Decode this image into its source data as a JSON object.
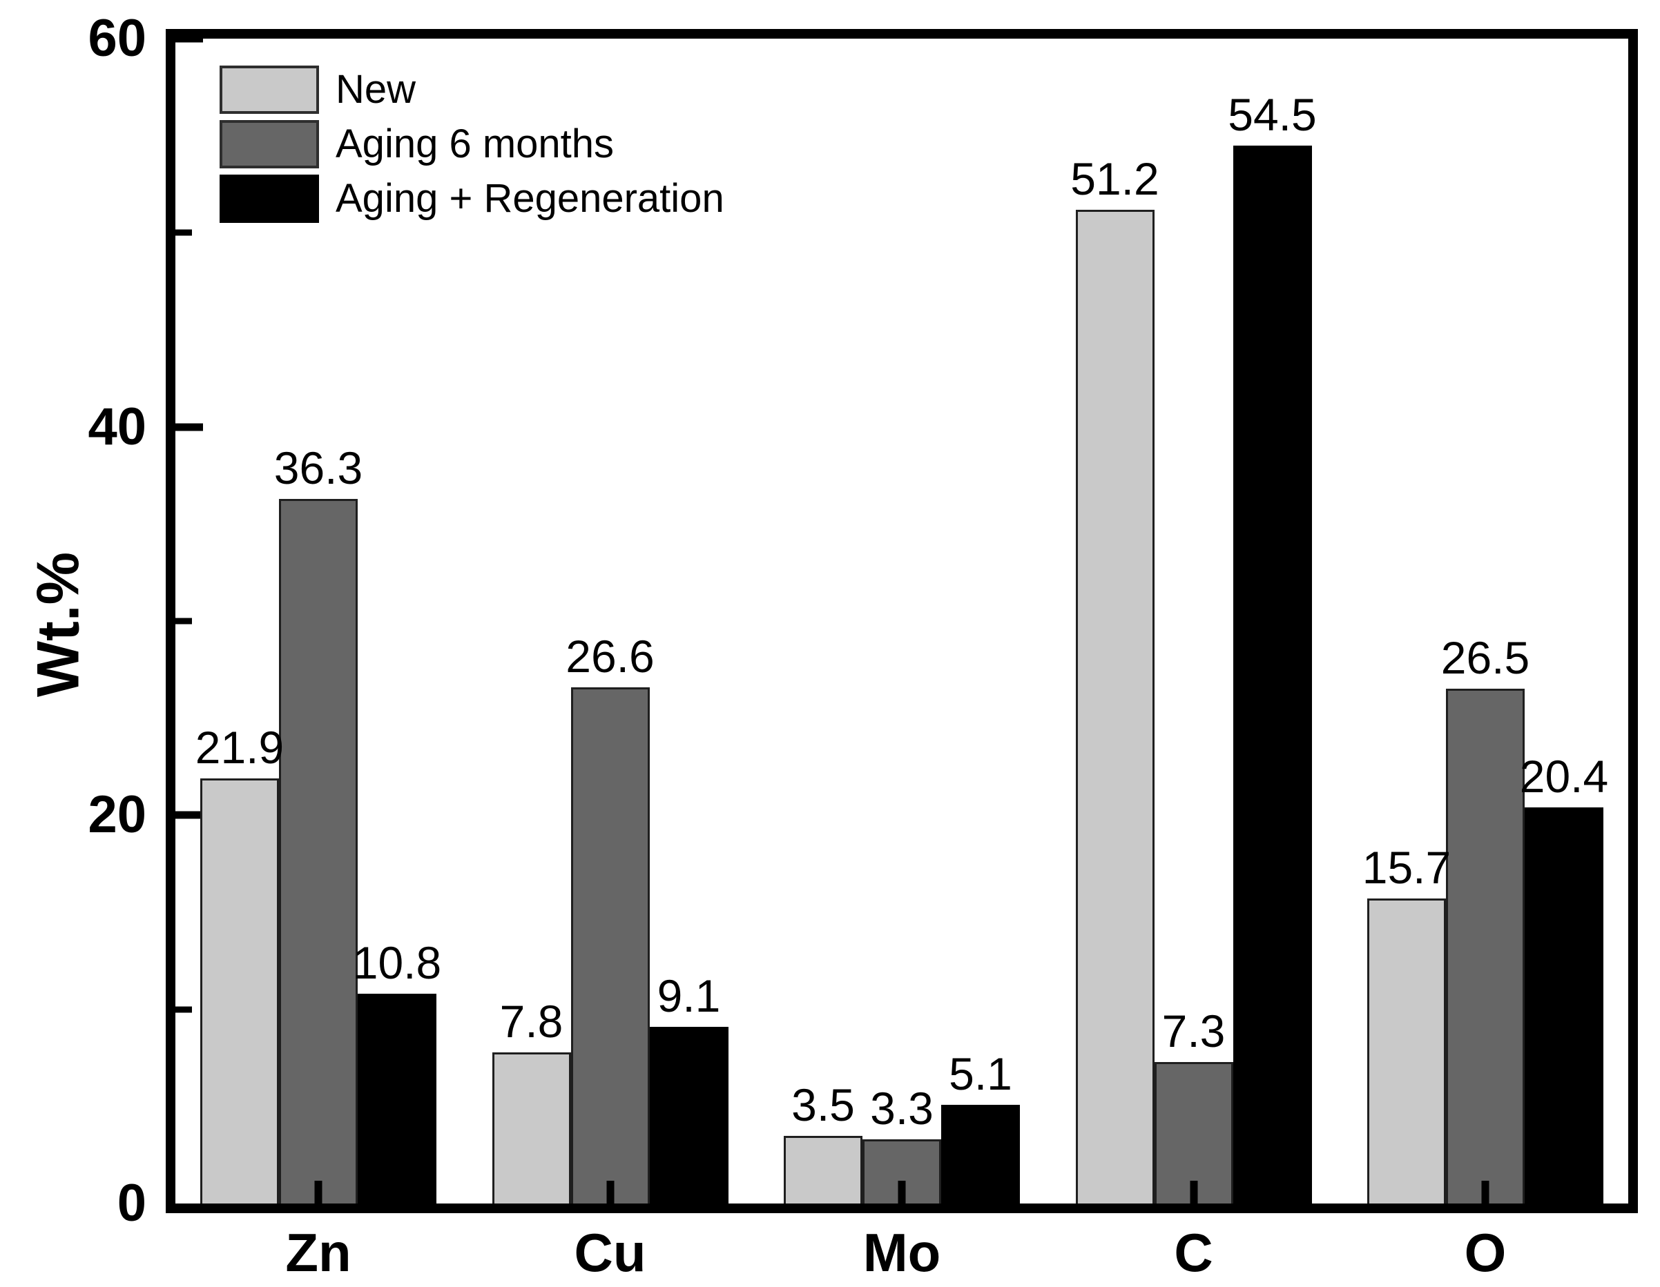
{
  "chart_data": {
    "type": "bar",
    "title": "",
    "categories": [
      "Zn",
      "Cu",
      "Mo",
      "C",
      "O"
    ],
    "series": [
      {
        "name": "New",
        "color": "#c9c9c9",
        "values": [
          21.9,
          7.8,
          3.5,
          51.2,
          15.7
        ]
      },
      {
        "name": "Aging 6 months",
        "color": "#666666",
        "values": [
          36.3,
          26.6,
          3.3,
          7.3,
          26.5
        ]
      },
      {
        "name": "Aging + Regeneration",
        "color": "#000000",
        "values": [
          10.8,
          9.1,
          5.1,
          54.5,
          20.4
        ]
      }
    ],
    "xlabel": "",
    "ylabel": "Wt.%",
    "ylim": [
      0,
      60
    ],
    "yticks_major": [
      0,
      20,
      40,
      60
    ],
    "yticks_minor": [
      10,
      30,
      50
    ],
    "bar_value_labels": true,
    "legend_position": "top-left-inside",
    "grid": false,
    "frame_color": "#000000",
    "background_color": "#ffffff",
    "text_color": "#000000"
  }
}
